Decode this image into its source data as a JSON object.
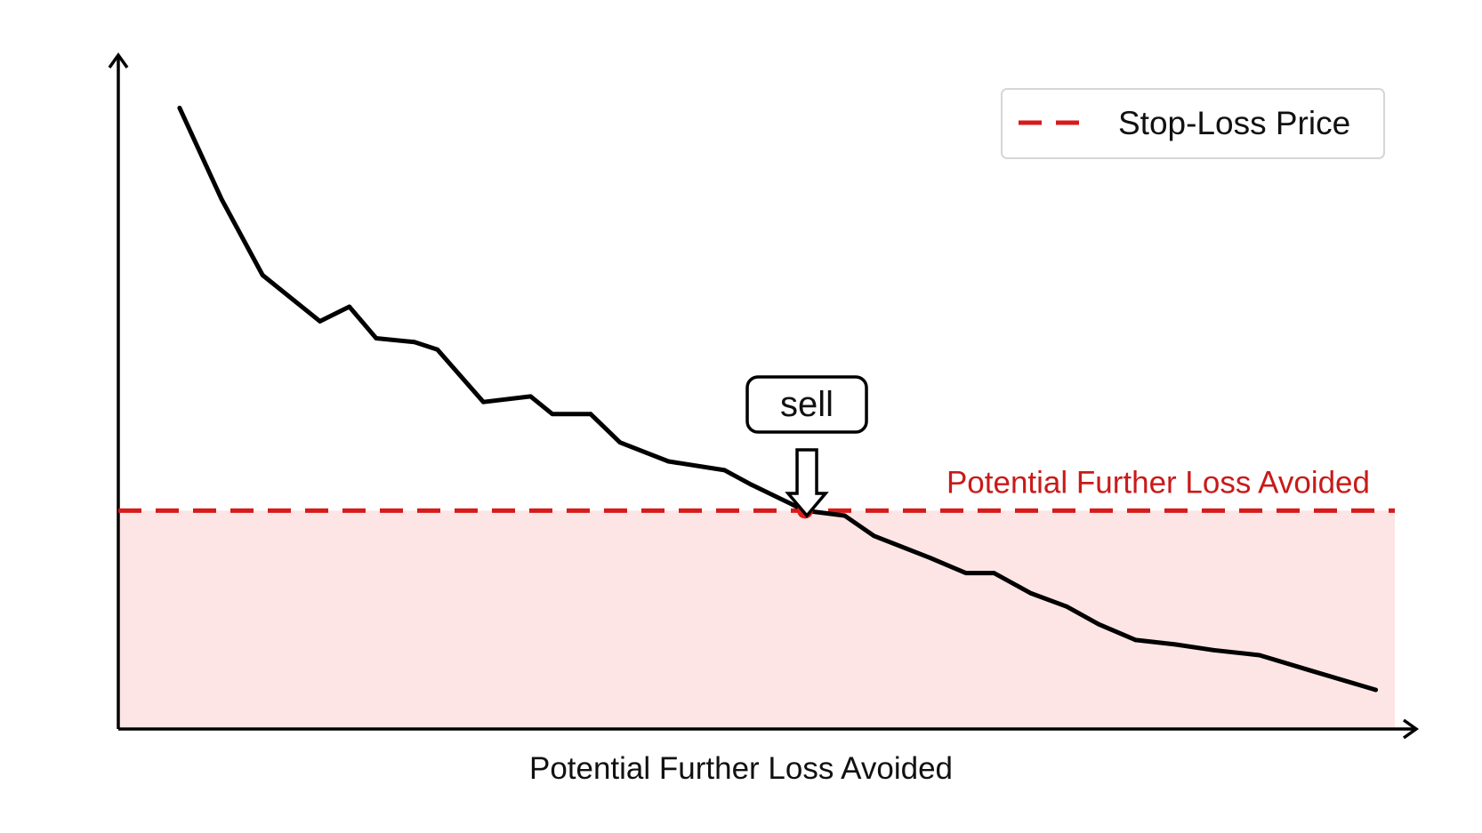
{
  "chart_data": {
    "type": "line",
    "xlabel": "Potential Further Loss Avoided",
    "ylabel": "",
    "xlim": [
      0,
      100
    ],
    "ylim": [
      0,
      100
    ],
    "grid": false,
    "legend_placement": "top-right",
    "series": [
      {
        "name": "",
        "x": [
          4.8,
          8.1,
          11.3,
          15.8,
          18.1,
          20.2,
          23.2,
          25.0,
          28.6,
          32.3,
          34.0,
          37.0,
          39.3,
          43.1,
          47.5,
          49.6,
          53.8,
          56.9,
          59.2,
          63.6,
          66.4,
          68.6,
          71.5,
          74.3,
          76.8,
          79.7,
          82.8,
          85.8,
          89.4,
          93.5,
          98.5
        ],
        "y": [
          92.2,
          77.7,
          65.7,
          58.4,
          60.7,
          55.7,
          55.1,
          53.9,
          45.6,
          46.5,
          43.7,
          43.7,
          39.2,
          36.2,
          34.8,
          32.5,
          28.4,
          27.6,
          24.4,
          20.9,
          18.5,
          18.5,
          15.3,
          13.2,
          10.4,
          7.9,
          7.2,
          6.3,
          5.5,
          3.0,
          0.0
        ],
        "color": "#000000"
      }
    ],
    "stop_loss": {
      "name": "Stop-Loss Price",
      "y": 28.4,
      "color": "#d71a1a"
    },
    "sell_point": {
      "label": "sell",
      "x": 53.8,
      "y": 28.4,
      "color": "#e01c1c"
    },
    "zone": {
      "label": "Potential Further Loss Avoided",
      "color": "#fde0e0",
      "label_color": "#c91a1a"
    },
    "axis_color": "#000000"
  }
}
